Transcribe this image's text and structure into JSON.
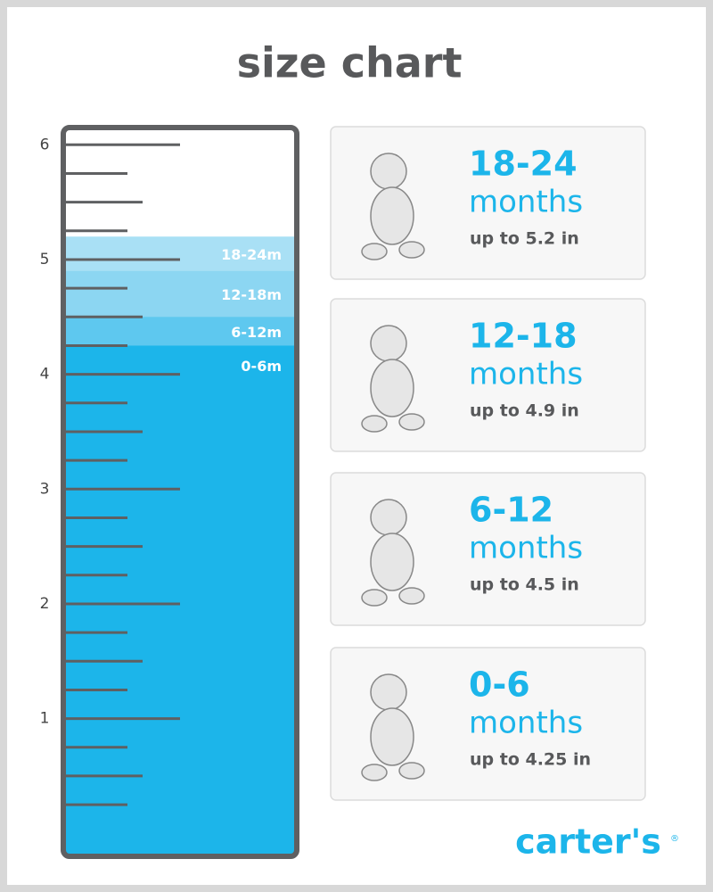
{
  "title": "size chart",
  "ruler": {
    "ylim": [
      -0.2,
      6.15
    ],
    "yticks": [
      1,
      2,
      3,
      4,
      5,
      6
    ],
    "minor_ticks": [
      0.25,
      0.5,
      0.75,
      1.25,
      1.5,
      1.75,
      2.25,
      2.5,
      2.75,
      3.25,
      3.5,
      3.75,
      4.25,
      4.5,
      4.75,
      5.25,
      5.5,
      5.75
    ],
    "bands": [
      {
        "label": "18-24m",
        "value": 5.2,
        "color": "#a9e0f5"
      },
      {
        "label": "12-18m",
        "value": 4.9,
        "color": "#8cd6f2"
      },
      {
        "label": "6-12m",
        "value": 4.5,
        "color": "#5ec8ef"
      },
      {
        "label": "0-6m",
        "value": 4.25,
        "color": "#1cb5ea"
      }
    ]
  },
  "cards": [
    {
      "range": "18-24",
      "unit": "months",
      "note": "up to 5.2 in"
    },
    {
      "range": "12-18",
      "unit": "months",
      "note": "up to 4.9 in"
    },
    {
      "range": "6-12",
      "unit": "months",
      "note": "up to 4.5 in"
    },
    {
      "range": "0-6",
      "unit": "months",
      "note": "up to 4.25 in"
    }
  ],
  "brand": {
    "name": "carter's",
    "mark": "®"
  }
}
